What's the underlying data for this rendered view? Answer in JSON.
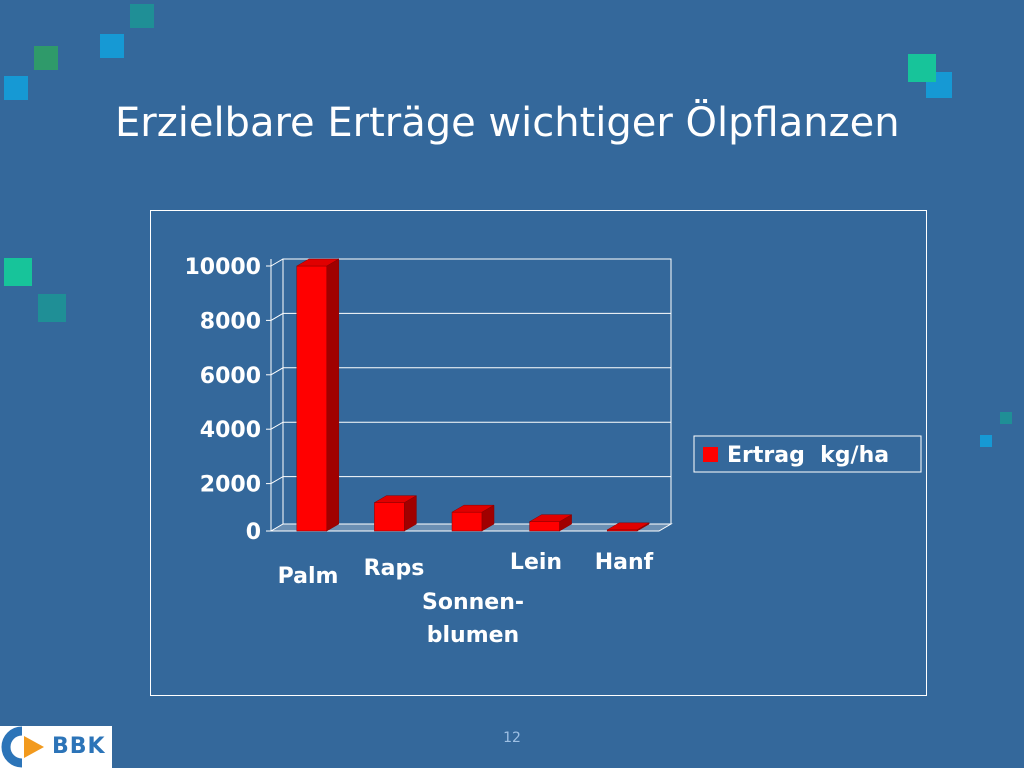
{
  "slide": {
    "title": "Erzielbare Erträge wichtiger Ölpflanzen",
    "page_number": "12",
    "logo_text": "BBK"
  },
  "colors": {
    "background": "#34689b",
    "bar_front": "#ff0000",
    "bar_top": "#e00000",
    "bar_side": "#a00000",
    "frame": "#ffffff"
  },
  "chart_data": {
    "type": "bar",
    "style": "3d",
    "title": "",
    "xlabel": "",
    "ylabel": "",
    "categories": [
      "Palm",
      "Raps",
      "Sonnen-\nblumen",
      "Lein",
      "Hanf"
    ],
    "series": [
      {
        "name": "Ertrag  kg/ha",
        "values": [
          10000,
          1300,
          950,
          600,
          300
        ]
      }
    ],
    "yticks": [
      "0",
      "2000",
      "4000",
      "6000",
      "8000",
      "10000"
    ],
    "ylim": [
      0,
      10000
    ],
    "grid": true,
    "legend": "right"
  }
}
